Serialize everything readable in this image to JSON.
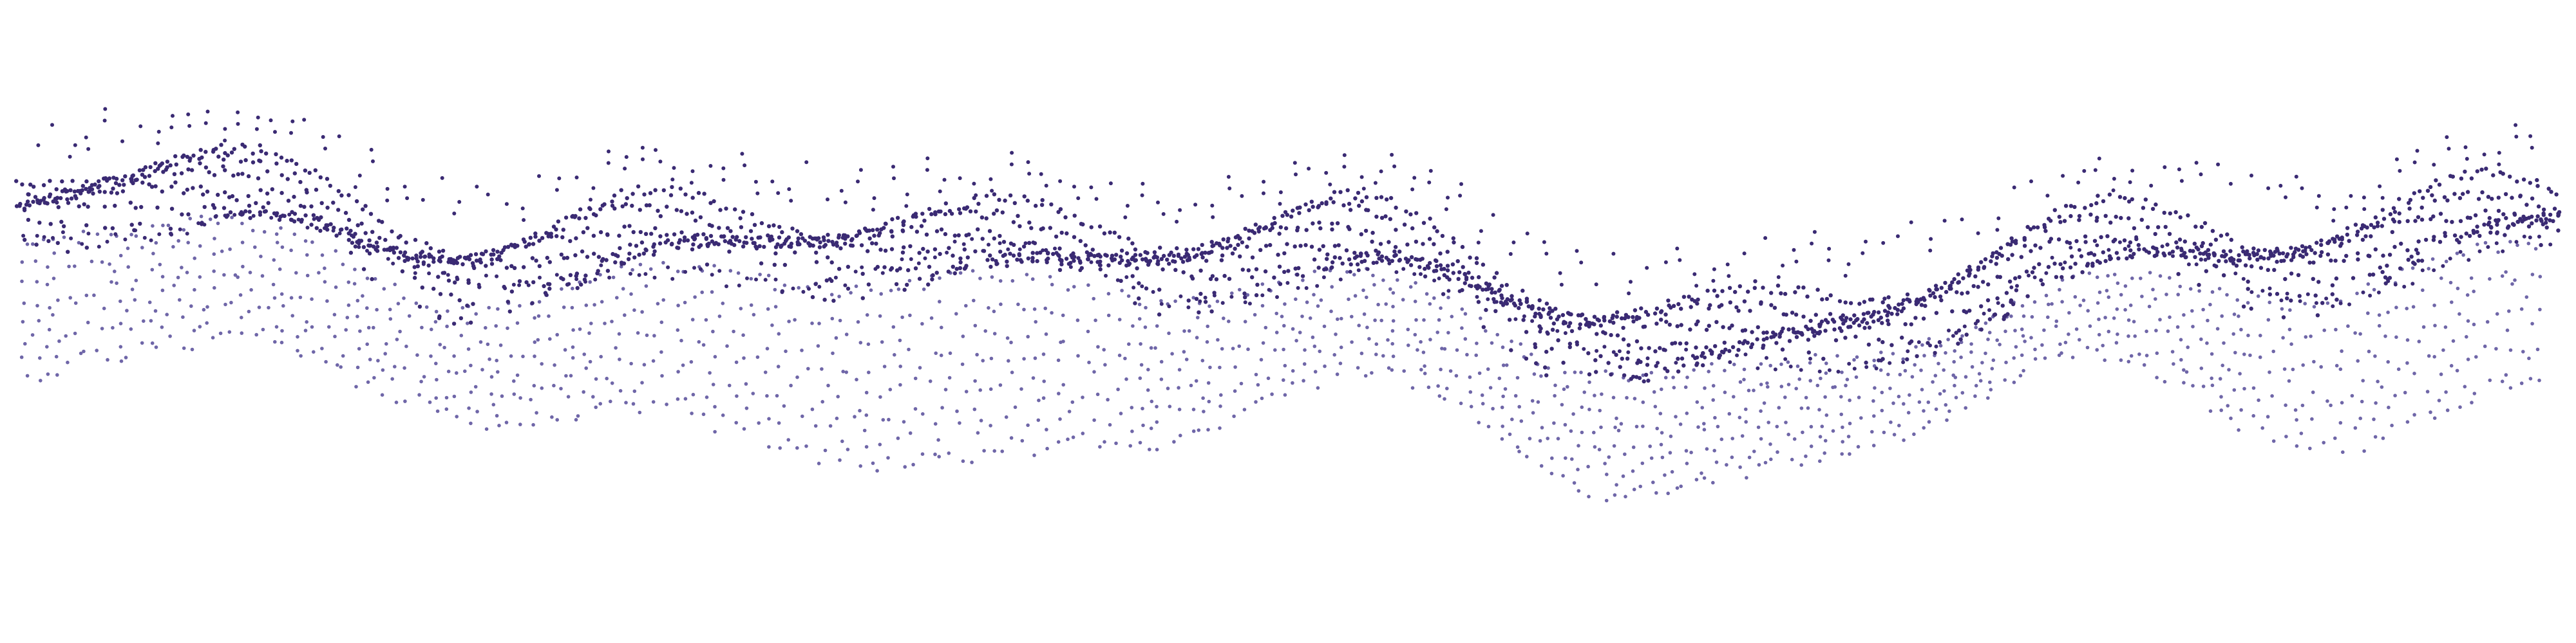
{
  "scene": {
    "background": "#ffffff",
    "point_colors": {
      "near": "#3a2a73",
      "far": "#6f66a8"
    },
    "dot_style": "scattered-points",
    "subject": "undulating-point-cloud-ribbon"
  }
}
